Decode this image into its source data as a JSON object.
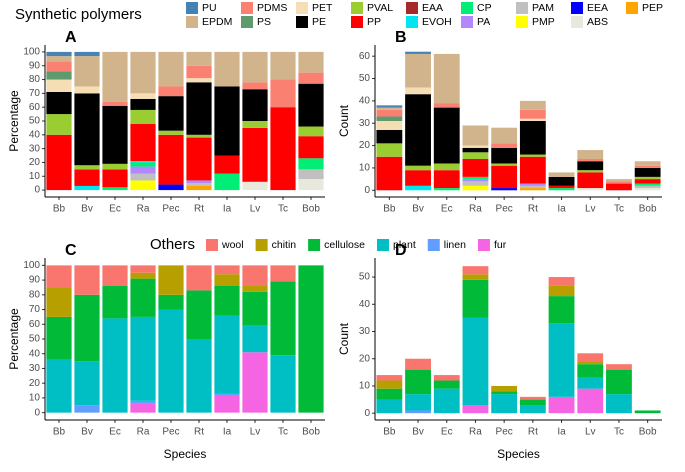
{
  "chart_data": [
    {
      "type": "bar",
      "stacked": true,
      "panel": "A",
      "legend_title": "Synthetic polymers",
      "ylabel": "Percentage",
      "categories": [
        "Bb",
        "Bv",
        "Ec",
        "Ra",
        "Pec",
        "Rt",
        "Ia",
        "Lv",
        "Tc",
        "Bob"
      ],
      "ylim": [
        -5,
        105
      ],
      "yticks": [
        0,
        10,
        20,
        30,
        40,
        50,
        60,
        70,
        80,
        90,
        100
      ],
      "series": [
        {
          "name": "PU",
          "color": "#4682b4",
          "values": [
            3,
            3,
            0,
            0,
            0,
            0,
            0,
            0,
            0,
            0
          ]
        },
        {
          "name": "EPDM",
          "color": "#d2b48c",
          "values": [
            4,
            22,
            36,
            30,
            25,
            10,
            25,
            22,
            20,
            15
          ]
        },
        {
          "name": "PDMS",
          "color": "#fa8072",
          "values": [
            7,
            0,
            3,
            0,
            7,
            9,
            0,
            5,
            20,
            8
          ]
        },
        {
          "name": "PS",
          "color": "#5e9a6e",
          "values": [
            6,
            0,
            0,
            0,
            0,
            0,
            0,
            0,
            0,
            0
          ]
        },
        {
          "name": "PET",
          "color": "#f5deb3",
          "values": [
            9,
            5,
            0,
            4,
            0,
            3,
            0,
            0,
            0,
            0
          ]
        },
        {
          "name": "PE",
          "color": "#000000",
          "values": [
            16,
            52,
            42,
            8,
            25,
            38,
            50,
            23,
            0,
            31
          ]
        },
        {
          "name": "PVAL",
          "color": "#9acd32",
          "values": [
            15,
            3,
            4,
            10,
            3,
            2,
            0,
            5,
            0,
            7
          ]
        },
        {
          "name": "PP",
          "color": "#ff0000",
          "values": [
            40,
            12,
            13,
            27,
            36,
            31,
            13,
            39,
            60,
            16
          ]
        },
        {
          "name": "EAA",
          "color": "#a52a2a",
          "values": [
            0,
            0,
            0,
            0,
            0,
            0,
            0,
            0,
            0,
            0
          ]
        },
        {
          "name": "EVOH",
          "color": "#00e5ee",
          "values": [
            0,
            3,
            0,
            1,
            0,
            0,
            0,
            0,
            0,
            0
          ]
        },
        {
          "name": "CP",
          "color": "#00ee76",
          "values": [
            0,
            0,
            2,
            3,
            0,
            0,
            12,
            0,
            0,
            8
          ]
        },
        {
          "name": "PA",
          "color": "#b388ff",
          "values": [
            0,
            0,
            0,
            5,
            0,
            2,
            0,
            0,
            0,
            0
          ]
        },
        {
          "name": "PAM",
          "color": "#c0c0c0",
          "values": [
            0,
            0,
            0,
            5,
            0,
            2,
            0,
            0,
            0,
            7
          ]
        },
        {
          "name": "PMP",
          "color": "#ffff00",
          "values": [
            0,
            0,
            0,
            7,
            0,
            0,
            0,
            0,
            0,
            0
          ]
        },
        {
          "name": "EEA",
          "color": "#0000ff",
          "values": [
            0,
            0,
            0,
            0,
            4,
            0,
            0,
            0,
            0,
            0
          ]
        },
        {
          "name": "ABS",
          "color": "#e8e8dc",
          "values": [
            0,
            0,
            0,
            0,
            0,
            0,
            0,
            6,
            0,
            8
          ]
        },
        {
          "name": "PEP",
          "color": "#ffa500",
          "values": [
            0,
            0,
            0,
            0,
            0,
            3,
            0,
            0,
            0,
            0
          ]
        }
      ]
    },
    {
      "type": "bar",
      "stacked": true,
      "panel": "B",
      "ylabel": "Count",
      "categories": [
        "Bb",
        "Bv",
        "Ec",
        "Ra",
        "Pec",
        "Rt",
        "Ia",
        "Lv",
        "Tc",
        "Bob"
      ],
      "ylim": [
        -3,
        65
      ],
      "yticks": [
        0,
        10,
        20,
        30,
        40,
        50,
        60
      ],
      "series": [
        {
          "values": [
            1,
            1,
            0,
            0,
            0,
            0,
            0,
            0,
            0,
            0
          ]
        },
        {
          "values": [
            1,
            15,
            22,
            9,
            7,
            4,
            2,
            4,
            1,
            2
          ]
        },
        {
          "values": [
            3,
            0,
            2,
            0,
            2,
            4,
            0,
            1,
            1,
            1
          ]
        },
        {
          "values": [
            2,
            0,
            0,
            0,
            0,
            0,
            0,
            0,
            0,
            0
          ]
        },
        {
          "values": [
            4,
            3,
            0,
            1,
            0,
            1,
            0,
            0,
            0,
            0
          ]
        },
        {
          "values": [
            6,
            32,
            25,
            2,
            7,
            15,
            4,
            4,
            0,
            4
          ]
        },
        {
          "values": [
            6,
            2,
            3,
            3,
            1,
            1,
            0,
            1,
            0,
            1
          ]
        },
        {
          "values": [
            15,
            7,
            8,
            8,
            10,
            12,
            1,
            7,
            3,
            2
          ]
        },
        {
          "values": [
            0,
            0,
            0,
            0,
            0,
            0,
            0,
            0,
            0,
            0
          ]
        },
        {
          "values": [
            0,
            2,
            0,
            0,
            0,
            0,
            0,
            0,
            0,
            0
          ]
        },
        {
          "values": [
            0,
            0,
            1,
            1,
            0,
            0,
            1,
            0,
            0,
            1
          ]
        },
        {
          "values": [
            0,
            0,
            0,
            1,
            0,
            1,
            0,
            0,
            0,
            0
          ]
        },
        {
          "values": [
            0,
            0,
            0,
            2,
            0,
            1,
            0,
            0,
            0,
            1
          ]
        },
        {
          "values": [
            0,
            0,
            0,
            2,
            0,
            0,
            0,
            0,
            0,
            0
          ]
        },
        {
          "values": [
            0,
            0,
            0,
            0,
            1,
            0,
            0,
            0,
            0,
            0
          ]
        },
        {
          "values": [
            0,
            0,
            0,
            0,
            0,
            0,
            0,
            1,
            0,
            1
          ]
        },
        {
          "values": [
            0,
            0,
            0,
            0,
            0,
            1,
            0,
            0,
            0,
            0
          ]
        }
      ]
    },
    {
      "type": "bar",
      "stacked": true,
      "panel": "C",
      "legend_title": "Others",
      "ylabel": "Percentage",
      "xlabel": "Species",
      "categories": [
        "Bb",
        "Bv",
        "Ec",
        "Ra",
        "Pec",
        "Rt",
        "Ia",
        "Lv",
        "Tc",
        "Bob"
      ],
      "ylim": [
        -5,
        105
      ],
      "yticks": [
        0,
        10,
        20,
        30,
        40,
        50,
        60,
        70,
        80,
        90,
        100
      ],
      "series": [
        {
          "name": "wool",
          "color": "#f8766d",
          "values": [
            15,
            20,
            14,
            5,
            0,
            17,
            6,
            14,
            11,
            0
          ]
        },
        {
          "name": "chitin",
          "color": "#b79f00",
          "values": [
            20,
            0,
            0,
            4,
            20,
            0,
            8,
            4,
            0,
            0
          ]
        },
        {
          "name": "cellulose",
          "color": "#00ba38",
          "values": [
            29,
            45,
            22,
            26,
            10,
            33,
            20,
            23,
            50,
            100
          ]
        },
        {
          "name": "plant",
          "color": "#00bfc4",
          "values": [
            36,
            30,
            64,
            57,
            70,
            50,
            53,
            18,
            39,
            0
          ]
        },
        {
          "name": "linen",
          "color": "#619cff",
          "values": [
            0,
            5,
            0,
            2,
            0,
            0,
            1,
            0,
            0,
            0
          ]
        },
        {
          "name": "fur",
          "color": "#f564e3",
          "values": [
            0,
            0,
            0,
            6,
            0,
            0,
            12,
            41,
            0,
            0
          ]
        }
      ]
    },
    {
      "type": "bar",
      "stacked": true,
      "panel": "D",
      "ylabel": "Count",
      "xlabel": "Species",
      "categories": [
        "Bb",
        "Bv",
        "Ec",
        "Ra",
        "Pec",
        "Rt",
        "Ia",
        "Lv",
        "Tc",
        "Bob"
      ],
      "ylim": [
        -2.5,
        57
      ],
      "yticks": [
        0,
        10,
        20,
        30,
        40,
        50
      ],
      "series": [
        {
          "values": [
            2,
            4,
            2,
            3,
            0,
            1,
            3,
            3,
            2,
            0
          ]
        },
        {
          "values": [
            3,
            0,
            0,
            2,
            2,
            0,
            4,
            1,
            0,
            0
          ]
        },
        {
          "values": [
            4,
            9,
            3,
            14,
            1,
            2,
            10,
            5,
            9,
            1
          ]
        },
        {
          "values": [
            5,
            6,
            9,
            32,
            7,
            3,
            27,
            4,
            7,
            0
          ]
        },
        {
          "values": [
            0,
            1,
            0,
            0,
            0,
            0,
            0,
            0,
            0,
            0
          ]
        },
        {
          "values": [
            0,
            0,
            0,
            3,
            0,
            0,
            6,
            9,
            0,
            0
          ]
        }
      ]
    }
  ]
}
